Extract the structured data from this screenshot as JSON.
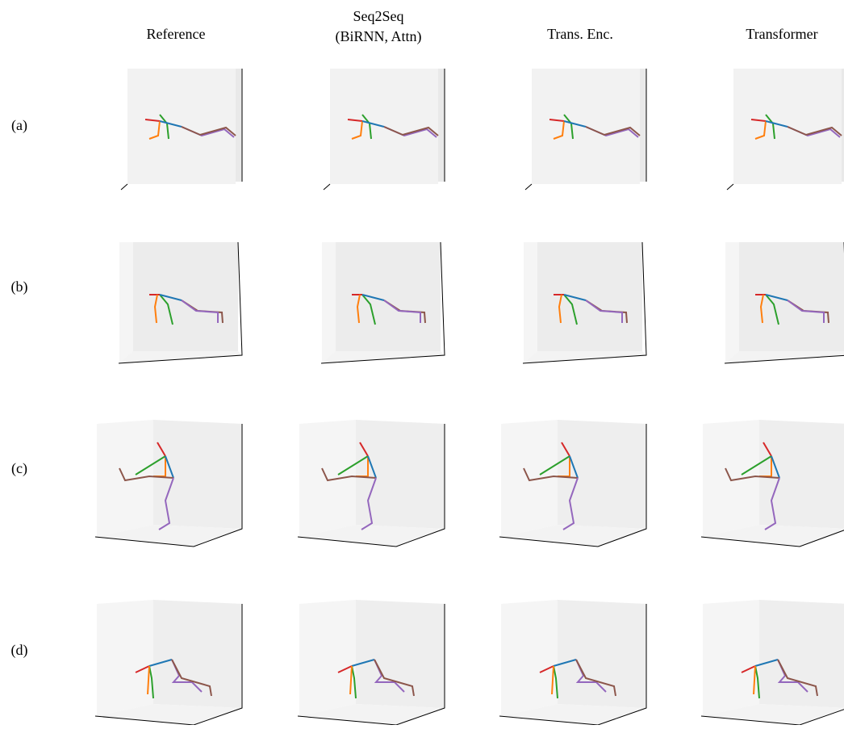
{
  "columns": [
    {
      "lines": [
        "Reference"
      ]
    },
    {
      "lines": [
        "Seq2Seq",
        "(BiRNN, Attn)"
      ]
    },
    {
      "lines": [
        "Trans. Enc."
      ]
    },
    {
      "lines": [
        "Transformer"
      ]
    }
  ],
  "rows": [
    "(a)",
    "(b)",
    "(c)",
    "(d)"
  ]
}
